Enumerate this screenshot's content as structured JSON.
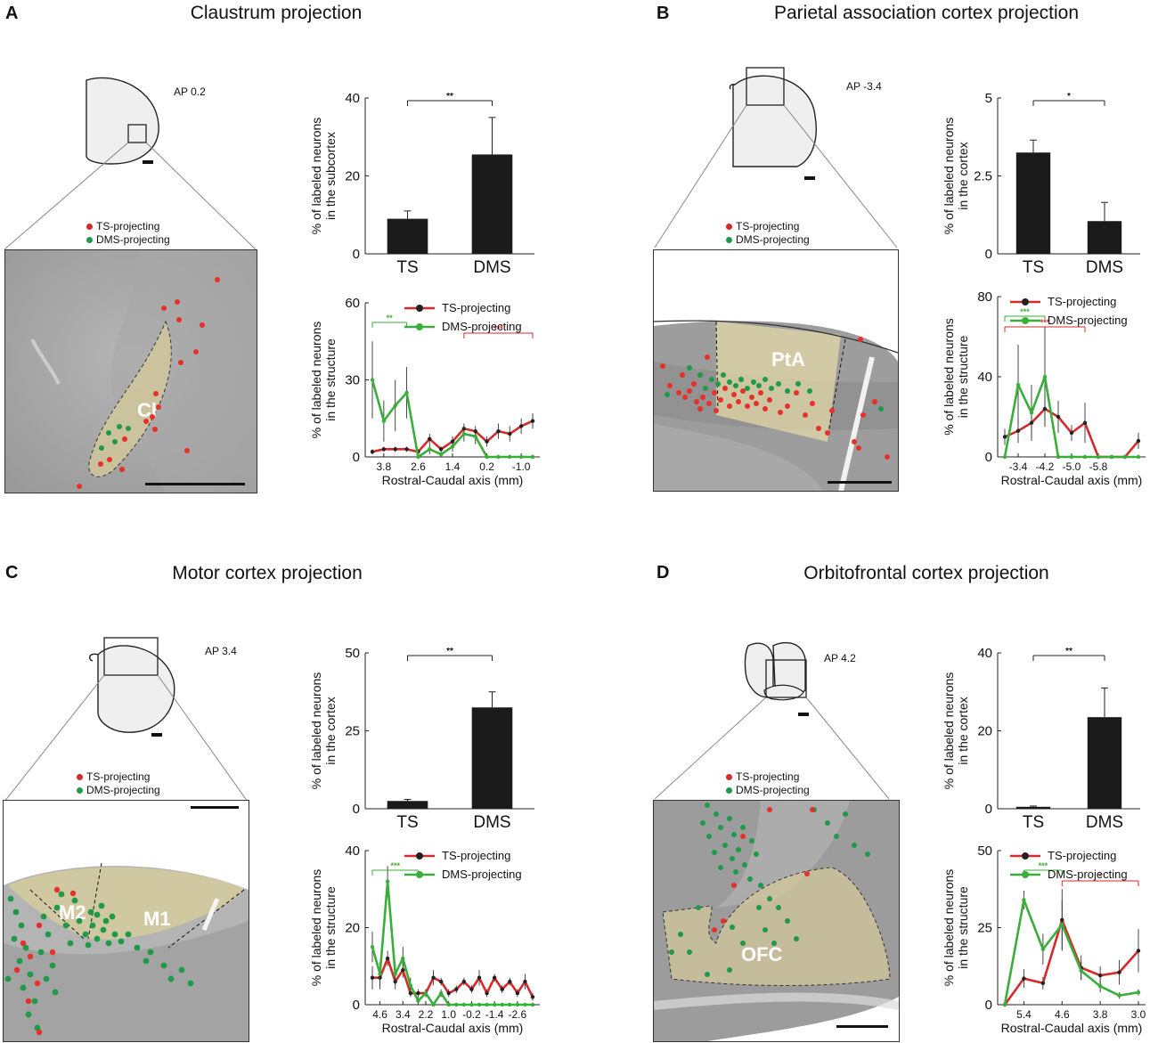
{
  "panels": [
    {
      "letter": "A",
      "title": "Claustrum projection",
      "ap": "AP  0.2",
      "legend": {
        "ts": "TS-projecting",
        "dms": "DMS-projecting"
      },
      "region_labels": [
        "Cl"
      ]
    },
    {
      "letter": "B",
      "title": "Parietal association cortex projection",
      "ap": "AP -3.4",
      "legend": {
        "ts": "TS-projecting",
        "dms": "DMS-projecting"
      },
      "region_labels": [
        "PtA"
      ]
    },
    {
      "letter": "C",
      "title": "Motor cortex projection",
      "ap": "AP 3.4",
      "legend": {
        "ts": "TS-projecting",
        "dms": "DMS-projecting"
      },
      "region_labels": [
        "M2",
        "M1"
      ]
    },
    {
      "letter": "D",
      "title": "Orbitofrontal cortex projection",
      "ap": "AP 4.2",
      "legend": {
        "ts": "TS-projecting",
        "dms": "DMS-projecting"
      },
      "region_labels": [
        "OFC"
      ]
    }
  ],
  "colors": {
    "ts": "#d42a2a",
    "dms": "#3aae3a",
    "dms_dot": "#1f9a4a",
    "bar": "#1a1a1a"
  },
  "chart_data": [
    {
      "id": "A-bar",
      "type": "bar",
      "categories": [
        "TS",
        "DMS"
      ],
      "values": [
        9,
        25.5
      ],
      "errors": [
        2,
        9.5
      ],
      "ylabel": [
        "% of labeled neurons",
        "in the subcortex"
      ],
      "ylim": [
        0,
        40
      ],
      "yticks": [
        0,
        20,
        40
      ],
      "significance": "**"
    },
    {
      "id": "A-line",
      "type": "line",
      "xlabel": "Rostral-Caudal axis (mm)",
      "ylabel": [
        "% of labeled neurons",
        "in the structure"
      ],
      "ylim": [
        0,
        60
      ],
      "yticks": [
        0,
        30,
        60
      ],
      "xticks": [
        "3.8",
        "2.6",
        "1.4",
        "0.2",
        "-1.0"
      ],
      "xtick_index": [
        1,
        4,
        7,
        10,
        13
      ],
      "series": [
        {
          "name": "TS-projecting",
          "values": [
            2,
            3,
            3,
            3,
            2,
            7,
            3,
            6,
            11,
            10,
            6,
            10,
            9,
            12,
            14
          ],
          "errors": [
            1,
            1,
            1,
            1,
            1,
            2,
            1,
            2,
            2,
            2,
            2,
            3,
            3,
            3,
            3
          ]
        },
        {
          "name": "DMS-projecting",
          "values": [
            30,
            14,
            20,
            25,
            0,
            3,
            1,
            4,
            9,
            8,
            0,
            0,
            0,
            0,
            0
          ],
          "errors": [
            15,
            8,
            10,
            10,
            0,
            2,
            1,
            2,
            3,
            3,
            0,
            0,
            0,
            0,
            0
          ]
        }
      ],
      "sig": [
        {
          "label": "**",
          "color": "dms",
          "from": 0,
          "to": 3
        },
        {
          "label": "***",
          "color": "ts",
          "from": 8,
          "to": 14
        }
      ]
    },
    {
      "id": "B-bar",
      "type": "bar",
      "categories": [
        "TS",
        "DMS"
      ],
      "values": [
        3.25,
        1.05
      ],
      "errors": [
        0.4,
        0.6
      ],
      "ylabel": [
        "% of labeled neurons",
        "in the cortex"
      ],
      "ylim": [
        0,
        5
      ],
      "yticks": [
        0,
        2.5,
        5
      ],
      "significance": "*"
    },
    {
      "id": "B-line",
      "type": "line",
      "xlabel": "Rostral-Caudal axis (mm)",
      "ylabel": [
        "% of labeled neurons",
        "in the structure"
      ],
      "ylim": [
        0,
        80
      ],
      "yticks": [
        0,
        40,
        80
      ],
      "xticks": [
        "-3.4",
        "-4.2",
        "-5.0",
        "-5.8"
      ],
      "xtick_index": [
        1,
        3,
        5,
        7
      ],
      "series": [
        {
          "name": "TS-projecting",
          "values": [
            10,
            13,
            17,
            24,
            20,
            12,
            17,
            0,
            0,
            0,
            8
          ],
          "errors": [
            4,
            6,
            7,
            8,
            8,
            4,
            10,
            0,
            0,
            0,
            4
          ]
        },
        {
          "name": "DMS-projecting",
          "values": [
            0,
            36,
            22,
            40,
            0,
            0,
            0,
            0,
            0,
            0,
            0
          ],
          "errors": [
            0,
            20,
            14,
            25,
            0,
            0,
            0,
            0,
            0,
            0,
            0
          ]
        }
      ],
      "sig": [
        {
          "label": "***",
          "color": "dms",
          "from": 0,
          "to": 3
        },
        {
          "label": "***",
          "color": "ts",
          "from": 0,
          "to": 6
        }
      ]
    },
    {
      "id": "C-bar",
      "type": "bar",
      "categories": [
        "TS",
        "DMS"
      ],
      "values": [
        2.5,
        32.5
      ],
      "errors": [
        0.5,
        5
      ],
      "ylabel": [
        "% of labeled neurons",
        "in the cortex"
      ],
      "ylim": [
        0,
        50
      ],
      "yticks": [
        0,
        25,
        50
      ],
      "significance": "**"
    },
    {
      "id": "C-line",
      "type": "line",
      "xlabel": "Rostral-Caudal axis (mm)",
      "ylabel": [
        "% of labeled neurons",
        "in the structure"
      ],
      "ylim": [
        0,
        40
      ],
      "yticks": [
        0,
        20,
        40
      ],
      "xticks": [
        "4.6",
        "3.4",
        "2.2",
        "1.0",
        "-0.2",
        "-1.4",
        "-2.6"
      ],
      "xtick_index": [
        1,
        4,
        7,
        10,
        13,
        16,
        19
      ],
      "series": [
        {
          "name": "TS-projecting",
          "values": [
            7,
            7,
            12,
            6,
            9,
            3,
            3,
            3,
            7,
            6,
            3,
            4,
            6,
            4,
            7,
            3,
            7,
            4,
            6,
            3,
            6,
            2
          ],
          "errors": [
            3,
            3,
            2,
            2,
            2,
            1,
            1,
            1,
            2,
            1,
            1,
            1,
            1,
            1,
            2,
            1,
            1,
            1,
            1,
            1,
            2,
            1
          ]
        },
        {
          "name": "DMS-projecting",
          "values": [
            15,
            8,
            32,
            8,
            12,
            5,
            1,
            3,
            0,
            3,
            0,
            0,
            0,
            0,
            0,
            0,
            0,
            0,
            0,
            0,
            0,
            0
          ],
          "errors": [
            4,
            3,
            4,
            3,
            3,
            2,
            1,
            1,
            0,
            1,
            0,
            0,
            0,
            0,
            0,
            0,
            0,
            0,
            0,
            0,
            0,
            0
          ]
        }
      ],
      "sig": [
        {
          "label": "***",
          "color": "dms",
          "from": 0,
          "to": 6
        }
      ]
    },
    {
      "id": "D-bar",
      "type": "bar",
      "categories": [
        "TS",
        "DMS"
      ],
      "values": [
        0.5,
        23.5
      ],
      "errors": [
        0.2,
        7.5
      ],
      "ylabel": [
        "% of labeled neurons",
        "in the cortex"
      ],
      "ylim": [
        0,
        40
      ],
      "yticks": [
        0,
        20,
        40
      ],
      "significance": "**"
    },
    {
      "id": "D-line",
      "type": "line",
      "xlabel": "Rostral-Caudal axis (mm)",
      "ylabel": [
        "% of labeled neurons",
        "in the structure"
      ],
      "ylim": [
        0,
        50
      ],
      "yticks": [
        0,
        25,
        50
      ],
      "xticks": [
        "5.4",
        "4.6",
        "3.8",
        "3.0"
      ],
      "xtick_index": [
        1,
        3,
        5,
        7
      ],
      "series": [
        {
          "name": "TS-projecting",
          "values": [
            0,
            8.5,
            7,
            27.5,
            12,
            9.5,
            10.5,
            17.5
          ],
          "errors": [
            0,
            3,
            2,
            10,
            4,
            3,
            4,
            7
          ]
        },
        {
          "name": "DMS-projecting",
          "values": [
            0,
            34,
            18,
            26,
            11,
            6,
            3,
            4
          ],
          "errors": [
            0,
            3,
            5,
            8,
            3,
            2,
            1,
            1
          ]
        }
      ],
      "sig": [
        {
          "label": "***",
          "color": "dms",
          "from": 1,
          "to": 3
        },
        {
          "label": "*",
          "color": "ts",
          "from": 3,
          "to": 7
        }
      ]
    }
  ]
}
